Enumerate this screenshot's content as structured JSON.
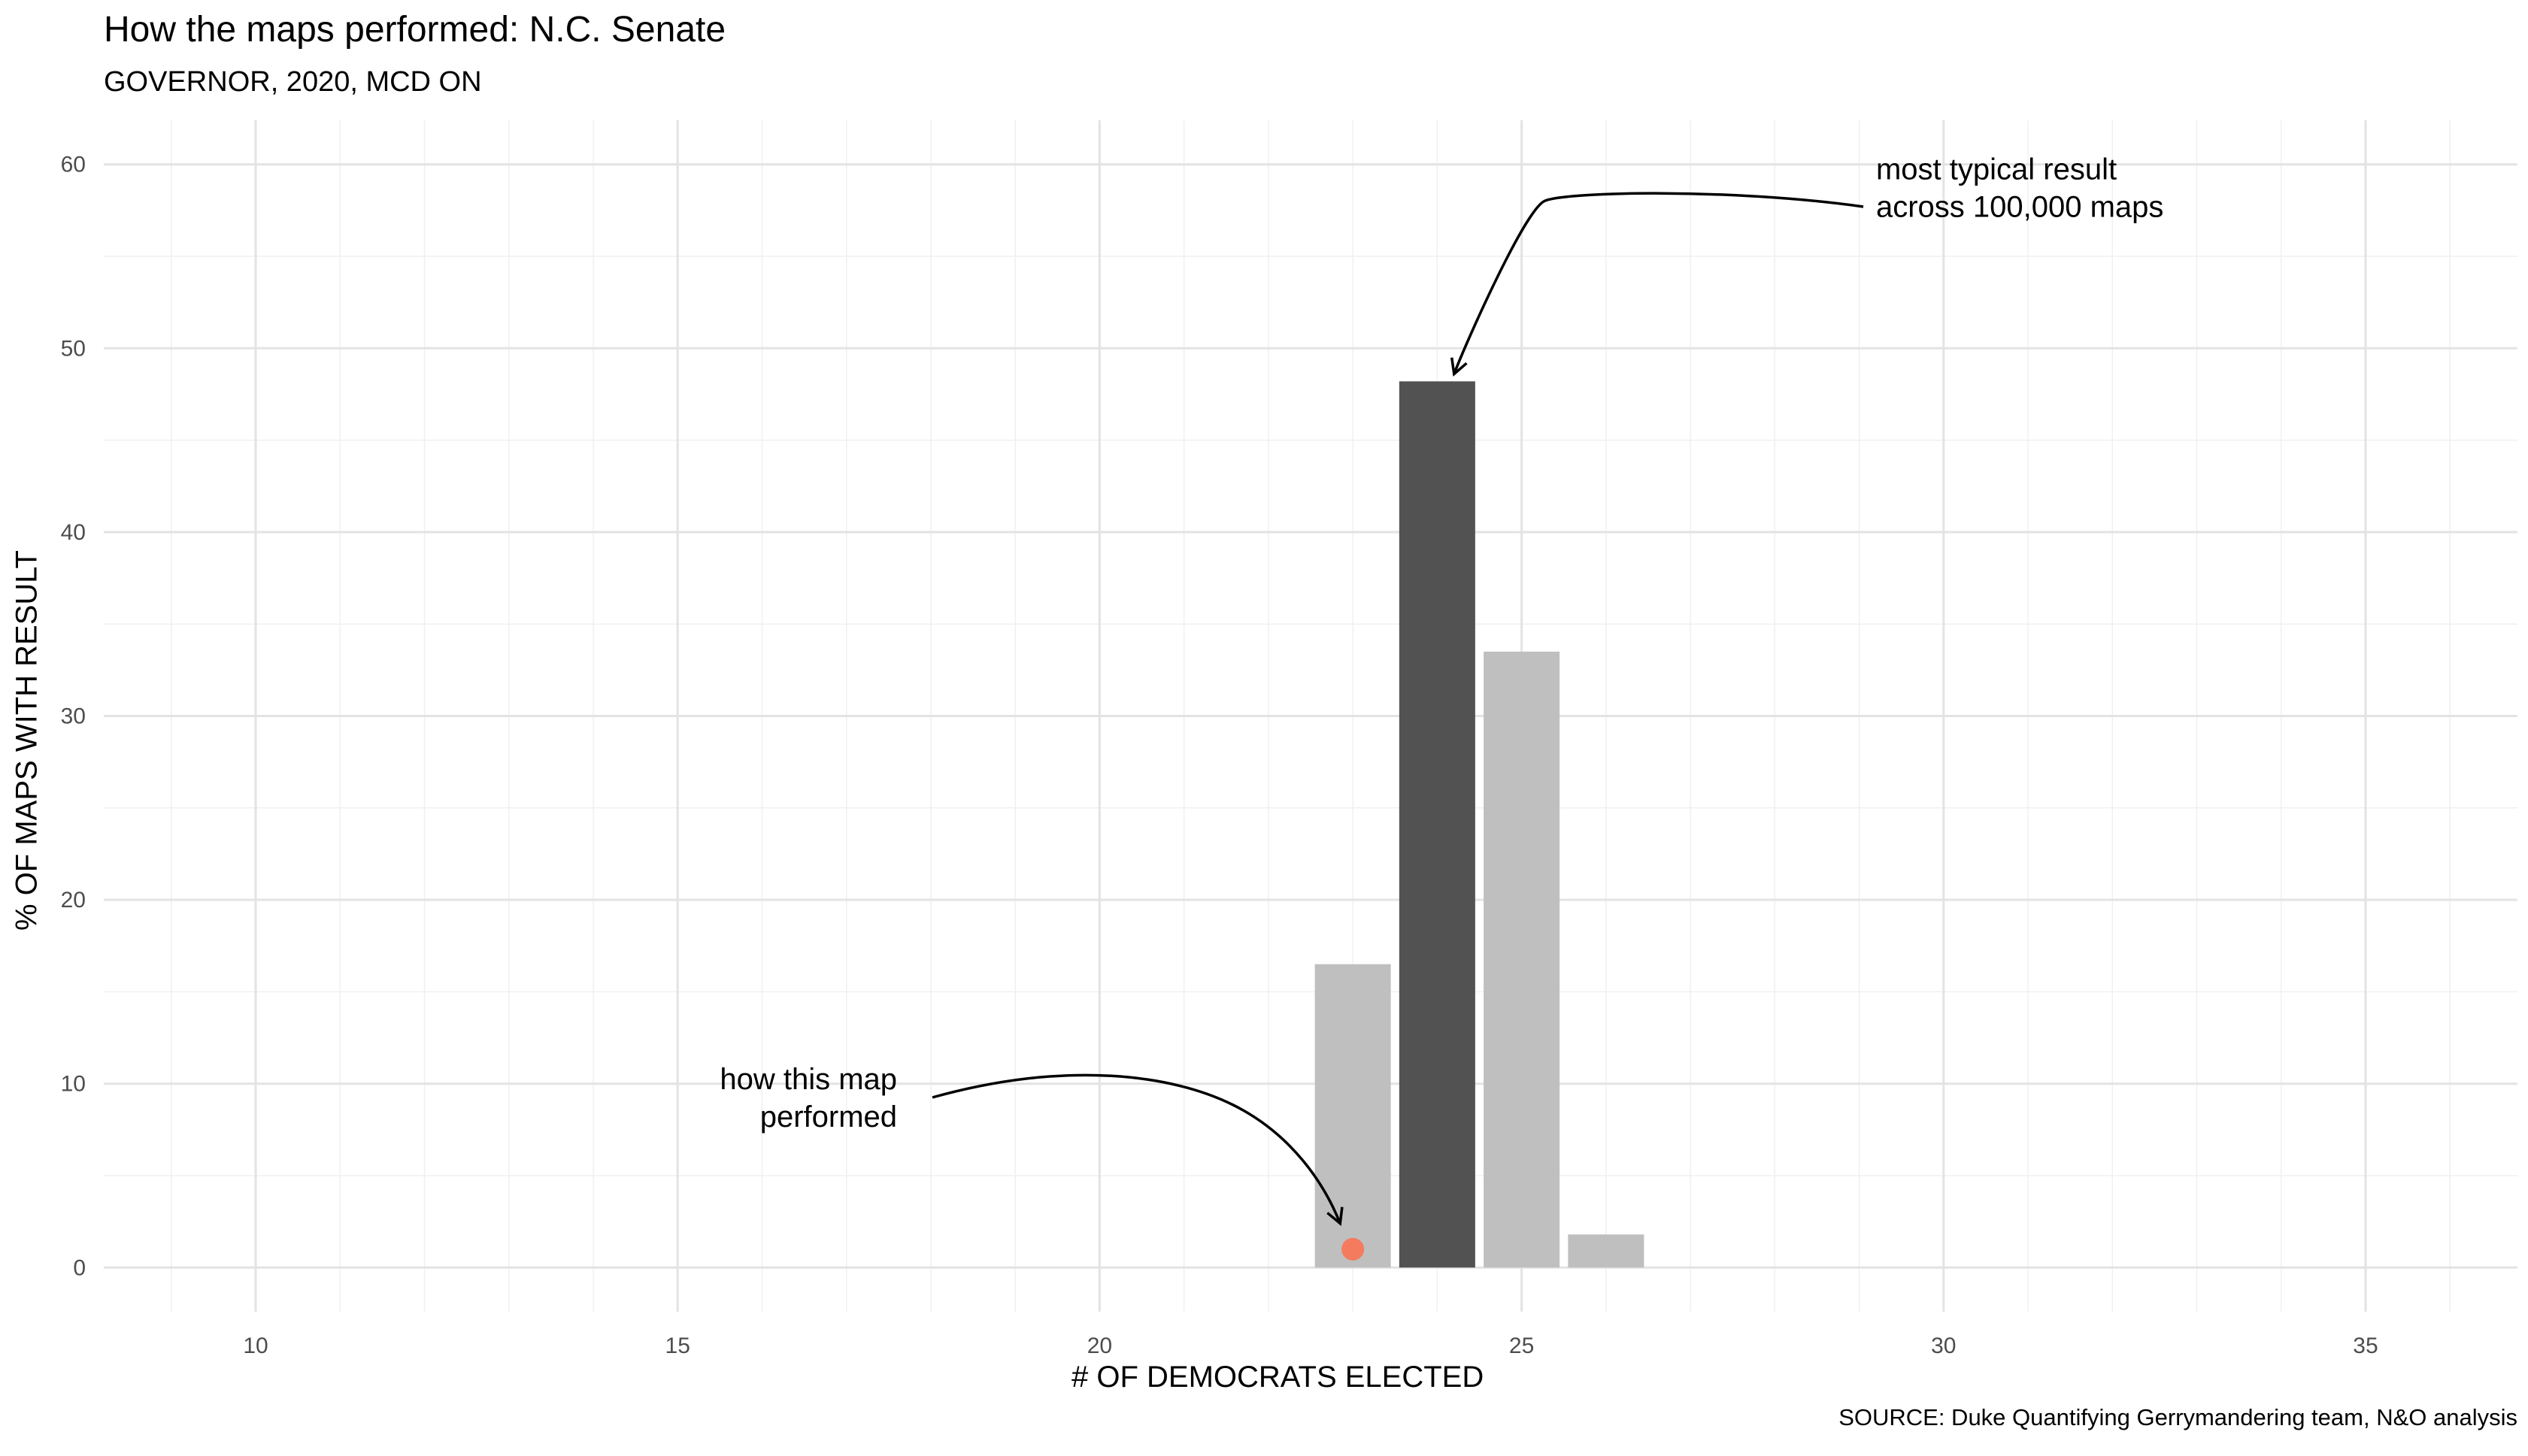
{
  "chart_data": {
    "type": "bar",
    "title": "How the maps performed: N.C. Senate",
    "subtitle": "GOVERNOR, 2020, MCD ON",
    "xlabel": "# OF DEMOCRATS ELECTED",
    "ylabel": "% OF MAPS WITH RESULT",
    "caption": "SOURCE: Duke Quantifying Gerrymandering team, N&O analysis",
    "xlim": [
      8.2,
      36.8
    ],
    "ylim": [
      -2.4,
      62.4
    ],
    "xticks": [
      10,
      15,
      20,
      25,
      30,
      35
    ],
    "yticks": [
      0,
      10,
      20,
      30,
      40,
      50,
      60
    ],
    "grid": true,
    "bars": [
      {
        "x": 23,
        "value": 16.5,
        "color": "#bfbfbf"
      },
      {
        "x": 24,
        "value": 48.2,
        "color": "#525252"
      },
      {
        "x": 25,
        "value": 33.5,
        "color": "#bfbfbf"
      },
      {
        "x": 26,
        "value": 1.8,
        "color": "#bfbfbf"
      }
    ],
    "point": {
      "x": 23,
      "y": 1,
      "color": "#f47b5e"
    },
    "annotations": [
      {
        "lines": [
          "most typical result",
          "across 100,000 maps"
        ],
        "x": 29.2,
        "y": 59.2,
        "anchor": "start"
      },
      {
        "lines": [
          "how this map",
          "performed"
        ],
        "x": 17.6,
        "y": 9.7,
        "anchor": "end"
      }
    ]
  }
}
